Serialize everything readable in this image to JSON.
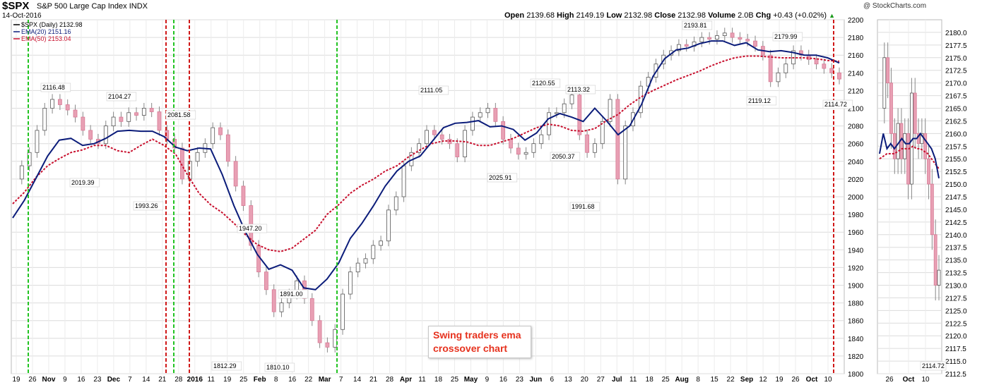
{
  "header": {
    "ticker": "$SPX",
    "name": "S&P 500 Large Cap Index",
    "exchange": "INDX",
    "date": "14-Oct-2016",
    "credit": "@ StockCharts.com",
    "open_label": "Open",
    "open": "2139.68",
    "high_label": "High",
    "high": "2149.19",
    "low_label": "Low",
    "low": "2132.98",
    "close_label": "Close",
    "close": "2132.98",
    "volume_label": "Volume",
    "volume": "2.0B",
    "chg_label": "Chg",
    "chg": "+0.43 (+0.02%)",
    "chg_icon": "up-triangle-icon"
  },
  "legend": [
    {
      "label": "$SPX (Daily) 2132.98",
      "color": "#000000"
    },
    {
      "label": "EMA(20) 2151.16",
      "color": "#0b1c7a"
    },
    {
      "label": "EMA(50) 2153.04",
      "color": "#c8102e"
    }
  ],
  "callout": {
    "line1": "Swing traders ema",
    "line2": "crossover chart"
  },
  "colors": {
    "up_candle": "#ffffff",
    "down_candle": "#e8a0b4",
    "ema20": "#0b1c7a",
    "ema50": "#c8102e",
    "buy_line": "#22c322",
    "sell_line": "#d01818",
    "grid": "#dcdcdc"
  },
  "chart_data": [
    {
      "type": "line",
      "title": "$SPX (Daily)",
      "ylim": [
        1800,
        2200
      ],
      "yticks": [
        1800,
        1820,
        1840,
        1860,
        1880,
        1900,
        1920,
        1940,
        1960,
        1980,
        2000,
        2020,
        2040,
        2060,
        2080,
        2100,
        2120,
        2140,
        2160,
        2180,
        2200
      ],
      "x_labels": [
        "19",
        "26",
        "Nov",
        "9",
        "16",
        "23",
        "Dec",
        "7",
        "14",
        "21",
        "28",
        "2016",
        "11",
        "19",
        "25",
        "Feb",
        "8",
        "16",
        "22",
        "Mar",
        "7",
        "14",
        "21",
        "28",
        "Apr",
        "11",
        "18",
        "25",
        "May",
        "9",
        "16",
        "23",
        "Jun",
        "6",
        "13",
        "20",
        "27",
        "Jul",
        "11",
        "18",
        "25",
        "Aug",
        "8",
        "15",
        "22",
        "Sep",
        "12",
        "19",
        "26",
        "Oct",
        "10"
      ],
      "series": [
        {
          "name": "$SPX (Daily)",
          "values": [
            2020,
            2035,
            2050,
            2075,
            2100,
            2110,
            2104,
            2098,
            2090,
            2075,
            2065,
            2060,
            2080,
            2090,
            2085,
            2095,
            2092,
            2100,
            2096,
            2075,
            2065,
            2055,
            2020,
            2040,
            2050,
            2060,
            2078,
            2070,
            2040,
            2012,
            1990,
            1945,
            1915,
            1895,
            1870,
            1880,
            1890,
            1905,
            1885,
            1860,
            1835,
            1830,
            1850,
            1890,
            1915,
            1925,
            1930,
            1945,
            1950,
            1985,
            2000,
            2035,
            2050,
            2060,
            2075,
            2070,
            2065,
            2060,
            2045,
            2075,
            2090,
            2095,
            2100,
            2085,
            2065,
            2055,
            2048,
            2050,
            2060,
            2070,
            2095,
            2095,
            2105,
            2115,
            2070,
            2050,
            2060,
            2085,
            2110,
            2020,
            2080,
            2095,
            2125,
            2135,
            2150,
            2160,
            2165,
            2172,
            2170,
            2175,
            2180,
            2178,
            2182,
            2185,
            2180,
            2178,
            2176,
            2170,
            2160,
            2130,
            2140,
            2150,
            2165,
            2160,
            2155,
            2150,
            2145,
            2140,
            2132.98
          ]
        },
        {
          "name": "EMA(20)",
          "values": [
            1976,
            1996,
            2021,
            2046,
            2064,
            2066,
            2058,
            2060,
            2066,
            2074,
            2075,
            2074,
            2074,
            2068,
            2056,
            2052,
            2055,
            2054,
            2025,
            1990,
            1960,
            1935,
            1918,
            1923,
            1917,
            1897,
            1895,
            1907,
            1925,
            1953,
            1970,
            1990,
            2012,
            2029,
            2040,
            2046,
            2062,
            2078,
            2083,
            2084,
            2086,
            2079,
            2080,
            2076,
            2064,
            2072,
            2088,
            2094,
            2090,
            2085,
            2100,
            2086,
            2070,
            2080,
            2104,
            2136,
            2156,
            2166,
            2168,
            2173,
            2176,
            2176,
            2171,
            2174,
            2166,
            2164,
            2165,
            2163,
            2160,
            2160,
            2157,
            2151.16
          ]
        },
        {
          "name": "EMA(50)",
          "values": [
            1992,
            2005,
            2022,
            2035,
            2043,
            2050,
            2053,
            2058,
            2058,
            2052,
            2050,
            2058,
            2065,
            2058,
            2048,
            2025,
            2004,
            1991,
            1982,
            1970,
            1957,
            1946,
            1940,
            1938,
            1942,
            1952,
            1962,
            1980,
            1991,
            2004,
            2013,
            2020,
            2029,
            2035,
            2045,
            2053,
            2060,
            2063,
            2063,
            2062,
            2058,
            2058,
            2062,
            2066,
            2072,
            2078,
            2082,
            2080,
            2075,
            2074,
            2077,
            2086,
            2093,
            2104,
            2113,
            2120,
            2126,
            2132,
            2137,
            2142,
            2148,
            2153,
            2157,
            2159,
            2159,
            2158,
            2157,
            2157,
            2157,
            2156,
            2154,
            2153.04
          ]
        }
      ],
      "annotations": [
        "2116.48",
        "2104.27",
        "2081.58",
        "2019.39",
        "1993.26",
        "1947.20",
        "1891.00",
        "1812.29",
        "1810.10",
        "2111.05",
        "2120.55",
        "2113.32",
        "2050.37",
        "2025.91",
        "1991.68",
        "2193.81",
        "2179.99",
        "2119.12",
        "2114.72"
      ],
      "vertical_signals": [
        {
          "type": "buy",
          "date": "Oct 23"
        },
        {
          "type": "sell",
          "date": "Dec 22"
        },
        {
          "type": "buy",
          "date": "Dec 28"
        },
        {
          "type": "sell",
          "date": "Jan 4"
        },
        {
          "type": "buy",
          "date": "Mar 10"
        },
        {
          "type": "sell",
          "date": "Oct 12"
        }
      ]
    },
    {
      "type": "line",
      "title": "$SPX zoom",
      "ylim": [
        2112.5,
        2182.5
      ],
      "yticks": [
        2112.5,
        2115.0,
        2117.5,
        2120.0,
        2122.5,
        2125.0,
        2127.5,
        2130.0,
        2132.5,
        2135.0,
        2137.5,
        2140.0,
        2142.5,
        2145.0,
        2147.5,
        2150.0,
        2152.5,
        2155.0,
        2157.5,
        2160.0,
        2162.5,
        2165.0,
        2167.5,
        2170.0,
        2172.5,
        2175.0,
        2177.5,
        2180.0
      ],
      "x_labels": [
        "26",
        "Oct",
        "10"
      ],
      "series": [
        {
          "name": "$SPX (Daily)",
          "values": [
            2165,
            2175,
            2170,
            2160,
            2155,
            2162,
            2155,
            2160,
            2150,
            2168,
            2160,
            2158,
            2160,
            2155,
            2150,
            2140,
            2130,
            2132.98
          ]
        },
        {
          "name": "EMA(20)",
          "values": [
            2156,
            2160,
            2157,
            2158,
            2157,
            2158,
            2159,
            2158,
            2158,
            2159,
            2159,
            2160,
            2159,
            2158,
            2157,
            2155,
            2151.16
          ]
        },
        {
          "name": "EMA(50)",
          "values": [
            2155,
            2155.5,
            2156,
            2156,
            2156,
            2156.5,
            2157,
            2157,
            2157,
            2157.5,
            2157,
            2157,
            2156.5,
            2156,
            2155,
            2154,
            2153.04
          ]
        }
      ],
      "annotations": [
        "2114.72"
      ]
    }
  ]
}
